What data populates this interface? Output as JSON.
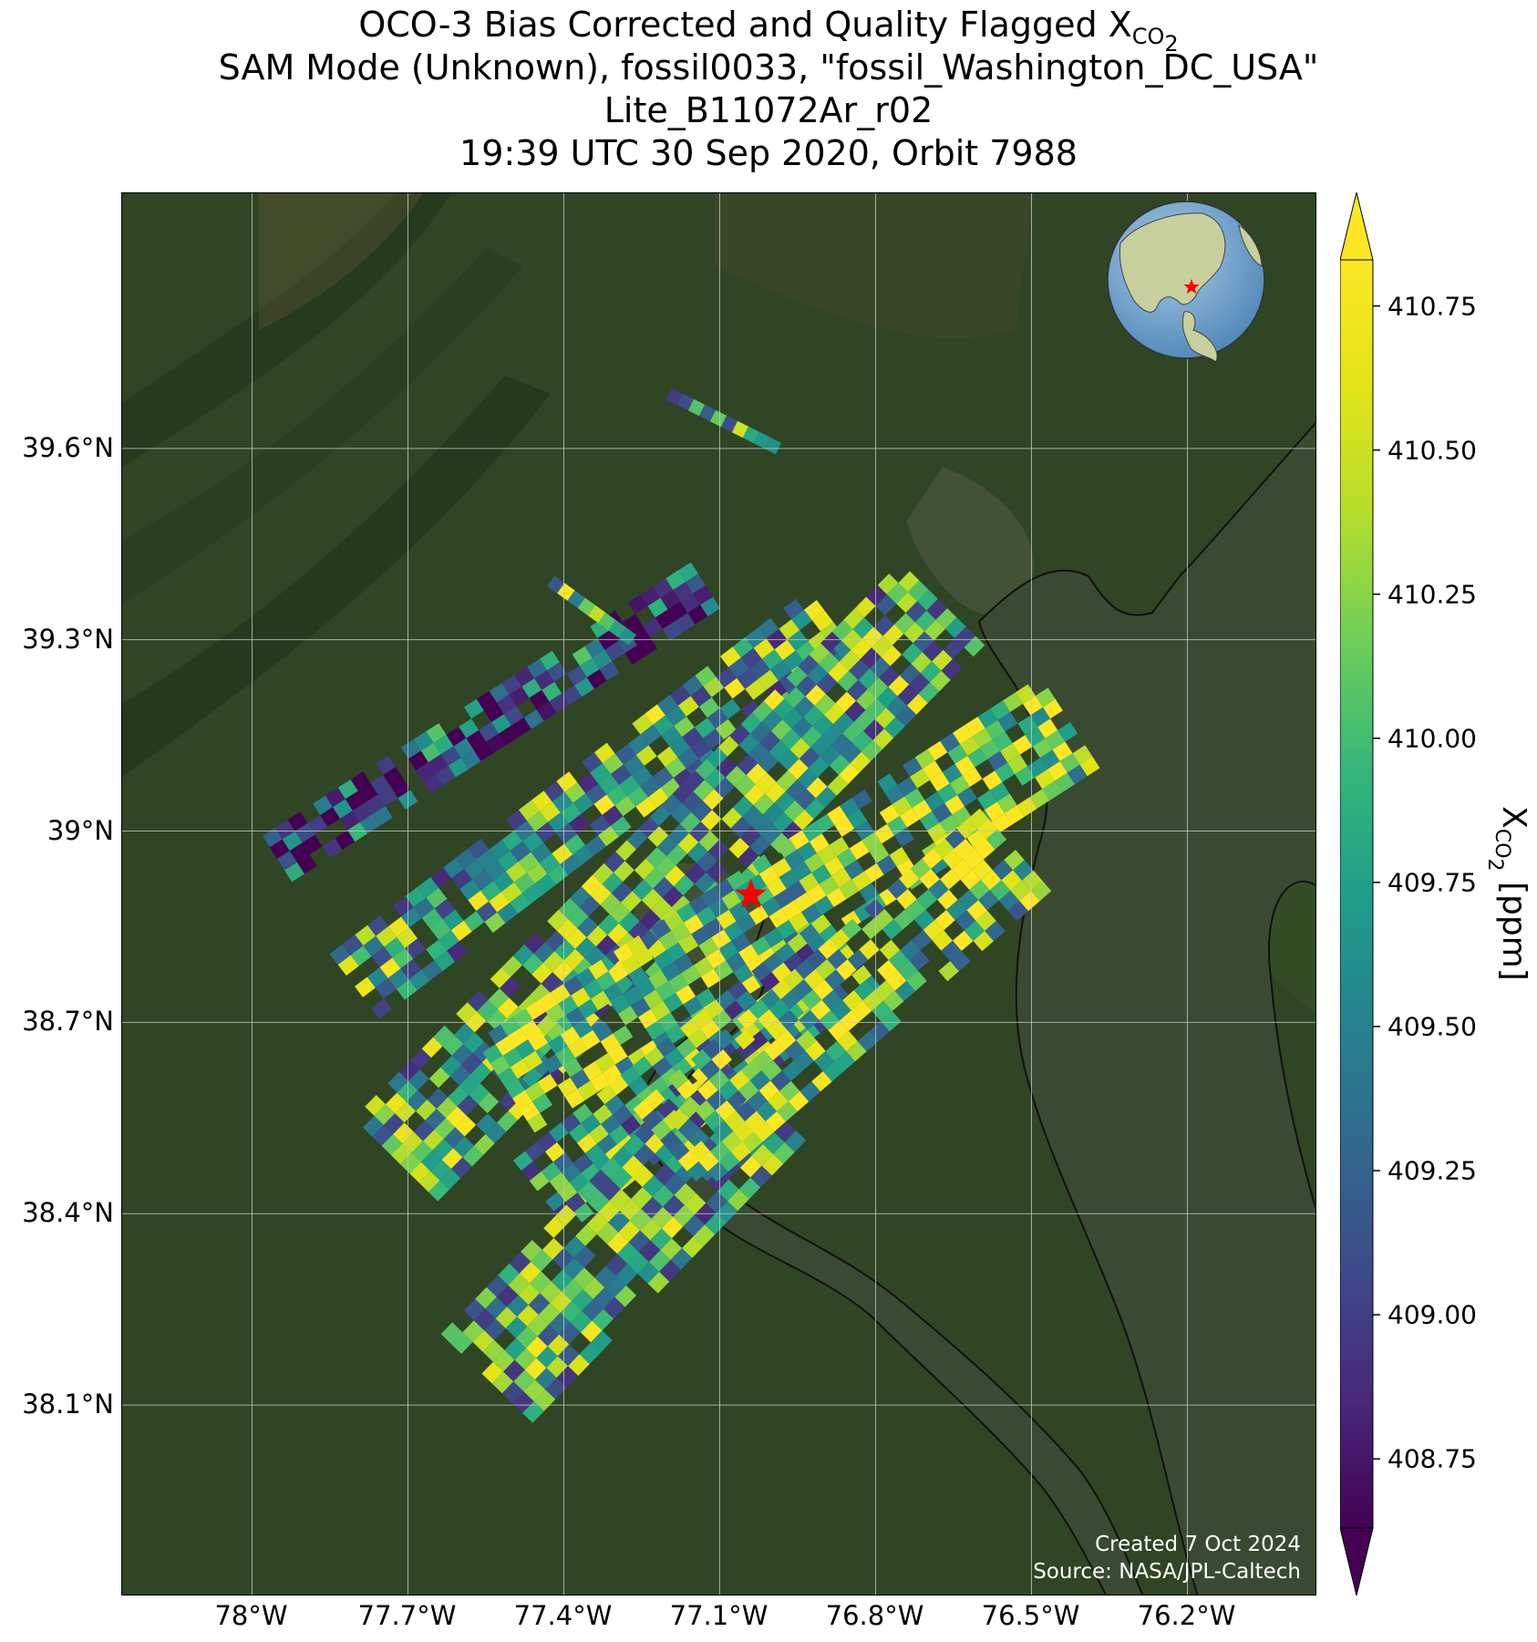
{
  "title": {
    "line1_prefix": "OCO-3 Bias Corrected and Quality Flagged X",
    "line1_sub": "CO",
    "line1_subsub": "2",
    "line2": "SAM Mode (Unknown), fossil0033, \"fossil_Washington_DC_USA\"",
    "line3": "Lite_B11072Ar_r02",
    "line4": "19:39 UTC 30 Sep 2020, Orbit 7988"
  },
  "credits": {
    "created": "Created 7 Oct 2024",
    "source": "Source: NASA/JPL-Caltech"
  },
  "colors": {
    "land": "#2f4524",
    "water": "#3a4a32",
    "grid": "#c8c8c8",
    "target_marker": "#ff0000"
  },
  "icons": {
    "target": "star-icon",
    "inset": "globe-icon"
  },
  "map": {
    "lon_range": [
      -78.25,
      -75.95
    ],
    "lat_range": [
      37.8,
      40.0
    ],
    "lat_ticks": [
      {
        "value": 39.6,
        "label": "39.6°N"
      },
      {
        "value": 39.3,
        "label": "39.3°N"
      },
      {
        "value": 39.0,
        "label": "39°N"
      },
      {
        "value": 38.7,
        "label": "38.7°N"
      },
      {
        "value": 38.4,
        "label": "38.4°N"
      },
      {
        "value": 38.1,
        "label": "38.1°N"
      }
    ],
    "lon_ticks": [
      {
        "value": -78.0,
        "label": "78°W"
      },
      {
        "value": -77.7,
        "label": "77.7°W"
      },
      {
        "value": -77.4,
        "label": "77.4°W"
      },
      {
        "value": -77.1,
        "label": "77.1°W"
      },
      {
        "value": -76.8,
        "label": "76.8°W"
      },
      {
        "value": -76.5,
        "label": "76.5°W"
      },
      {
        "value": -76.2,
        "label": "76.2°W"
      }
    ],
    "target": {
      "lon": -77.04,
      "lat": 38.9
    }
  },
  "colorbar": {
    "vmin": 408.63,
    "vmax": 410.83,
    "extend": "both",
    "colormap": "viridis",
    "ticks": [
      {
        "value": 410.75,
        "label": "410.75"
      },
      {
        "value": 410.5,
        "label": "410.50"
      },
      {
        "value": 410.25,
        "label": "410.25"
      },
      {
        "value": 410.0,
        "label": "410.00"
      },
      {
        "value": 409.75,
        "label": "409.75"
      },
      {
        "value": 409.5,
        "label": "409.50"
      },
      {
        "value": 409.25,
        "label": "409.25"
      },
      {
        "value": 409.0,
        "label": "409.00"
      },
      {
        "value": 408.75,
        "label": "408.75"
      }
    ],
    "label_prefix": "X",
    "label_sub": "CO",
    "label_subsub": "2",
    "label_suffix": " [ppm]"
  }
}
